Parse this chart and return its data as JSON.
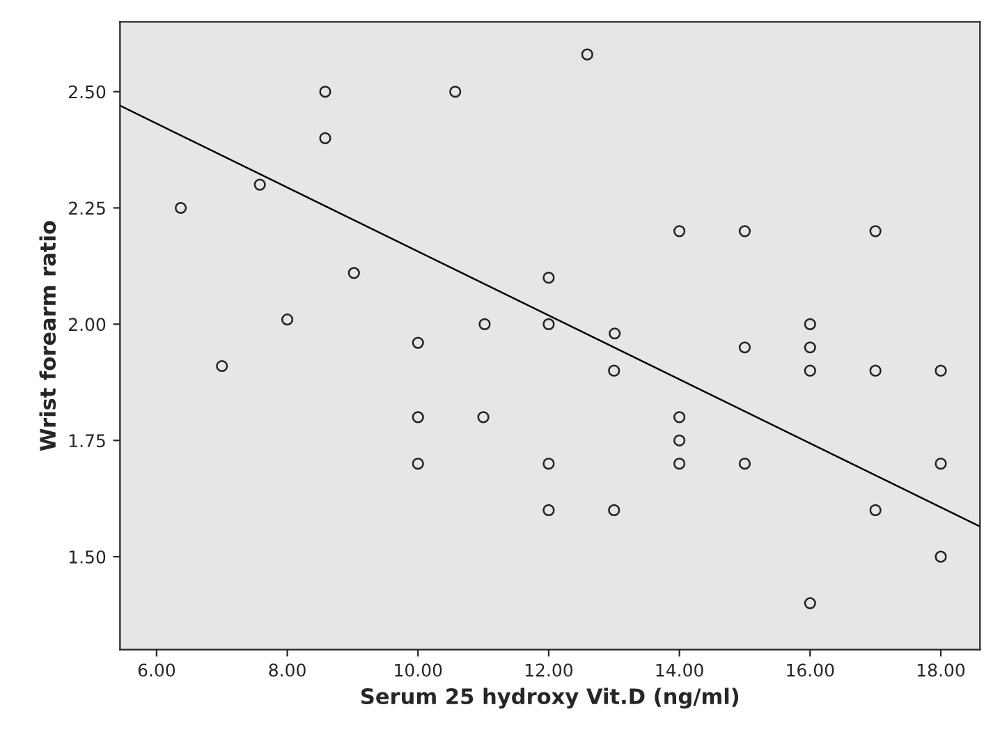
{
  "chart_data": {
    "type": "scatter",
    "xlabel": "Serum 25 hydroxy Vit.D (ng/ml)",
    "ylabel": "Wrist forearm ratio",
    "xlim": [
      5.44,
      18.6
    ],
    "ylim": [
      1.3,
      2.65
    ],
    "xticks": [
      {
        "value": 6,
        "label": "6.00"
      },
      {
        "value": 8,
        "label": "8.00"
      },
      {
        "value": 10,
        "label": "10.00"
      },
      {
        "value": 12,
        "label": "12.00"
      },
      {
        "value": 14,
        "label": "14.00"
      },
      {
        "value": 16,
        "label": "16.00"
      },
      {
        "value": 18,
        "label": "18.00"
      }
    ],
    "yticks": [
      {
        "value": 1.5,
        "label": "1.50"
      },
      {
        "value": 1.75,
        "label": "1.75"
      },
      {
        "value": 2.0,
        "label": "2.00"
      },
      {
        "value": 2.25,
        "label": "2.25"
      },
      {
        "value": 2.5,
        "label": "2.50"
      }
    ],
    "grid": false,
    "legend": false,
    "series": [
      {
        "marker": "circle",
        "color": "#222222",
        "x": [
          6.37,
          7.0,
          7.58,
          8.0,
          8.58,
          8.58,
          9.02,
          10,
          10,
          10,
          10.57,
          11.02,
          11,
          12,
          12,
          12,
          12,
          12.59,
          13.01,
          13,
          13,
          14,
          14,
          14,
          14,
          15,
          15,
          15,
          16,
          16,
          16,
          16,
          17,
          17,
          17,
          18,
          18,
          18
        ],
        "values": [
          2.25,
          1.91,
          2.3,
          2.01,
          2.5,
          2.4,
          2.11,
          1.96,
          1.8,
          1.7,
          2.5,
          2.0,
          1.8,
          2.1,
          2.0,
          1.7,
          1.6,
          2.58,
          1.98,
          1.9,
          1.6,
          2.2,
          1.8,
          1.75,
          1.7,
          2.2,
          1.95,
          1.7,
          2.0,
          1.95,
          1.9,
          1.4,
          2.2,
          1.9,
          1.6,
          1.9,
          1.7,
          1.5
        ]
      },
      {
        "type": "line",
        "marker": "none",
        "line_style": "solid",
        "color": "#000000",
        "x": [
          5.44,
          18.6
        ],
        "values": [
          2.47,
          1.565
        ]
      }
    ]
  }
}
